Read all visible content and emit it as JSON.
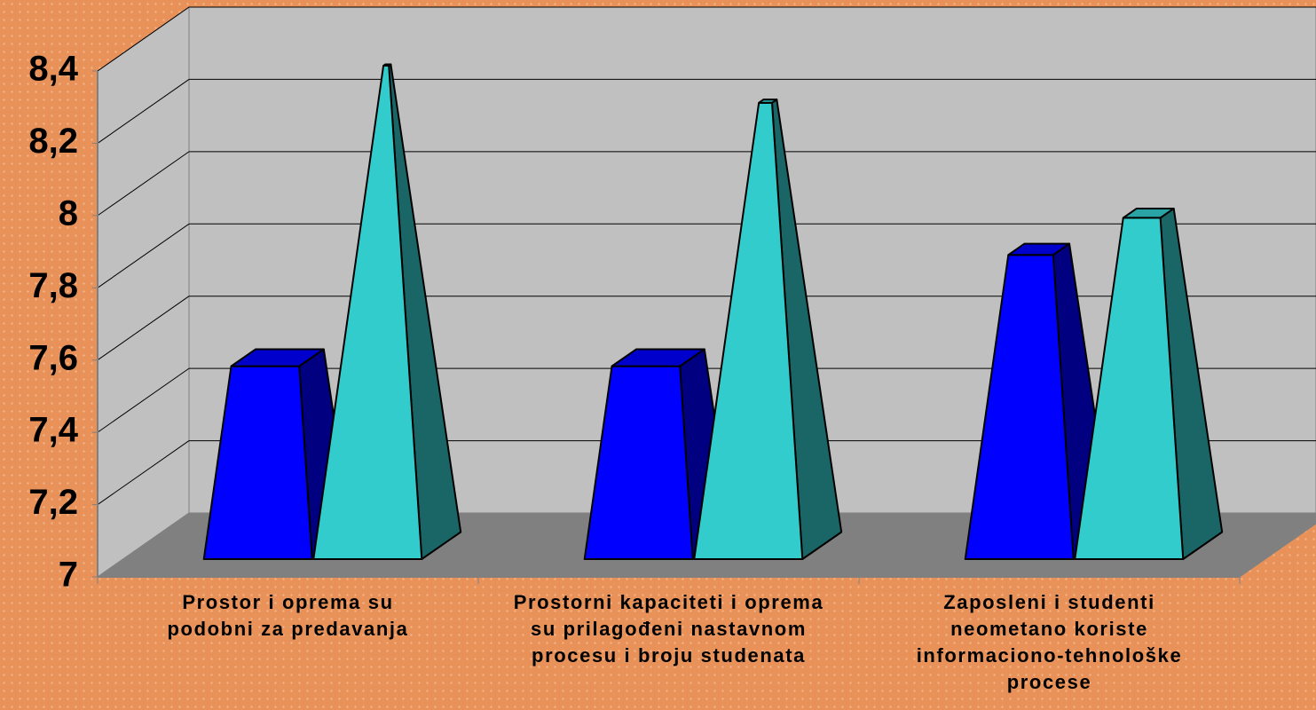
{
  "chart_data": {
    "type": "bar3d",
    "categories": [
      "Prostor i oprema su\npodobni za predavanja",
      "Prostorni kapaciteti i oprema\nsu prilagođeni nastavnom\nprocesu i broju studenata",
      "Zaposleni i studenti\nneometano koriste\ninformaciono-tehnološke\nprocese"
    ],
    "series": [
      {
        "color": "#0000ff",
        "values": [
          7.52,
          7.52,
          7.82
        ]
      },
      {
        "color": "#33cccc",
        "values": [
          8.33,
          8.23,
          7.92
        ]
      }
    ],
    "ylim": [
      7,
      8.4
    ],
    "yticks": [
      7,
      {
        "value": 7.2,
        "label": "7,2"
      },
      {
        "value": 7.4,
        "label": "7,4"
      },
      {
        "value": 7.6,
        "label": "7,6"
      },
      {
        "value": 7.8,
        "label": "7,8"
      },
      8,
      {
        "value": 8.2,
        "label": "8,2"
      },
      {
        "value": 8.4,
        "label": "8,4"
      }
    ],
    "grid": true
  }
}
